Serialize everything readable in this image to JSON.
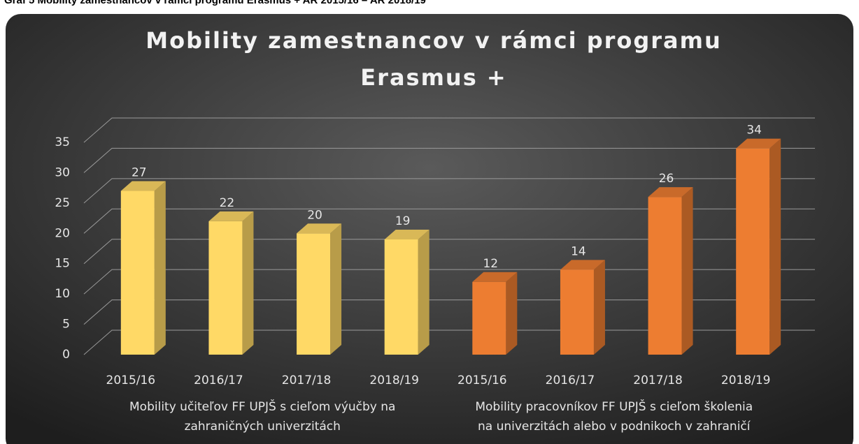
{
  "caption": "Graf 5 Mobility zamestnancov v rámci programu Erasmus + AR 2015/16 – AR 2018/19",
  "chart_data": {
    "type": "bar",
    "title": [
      "Mobility zamestnancov v rámci programu",
      "Erasmus +"
    ],
    "groups": [
      {
        "label": [
          "Mobility učiteľov FF UPJŠ s cieľom výučby na",
          "zahraničných univerzitách"
        ],
        "color": "#ffd966",
        "categories": [
          "2015/16",
          "2016/17",
          "2017/18",
          "2018/19"
        ],
        "values": [
          27,
          22,
          20,
          19
        ]
      },
      {
        "label": [
          "Mobility pracovníkov FF UPJŠ s cieľom školenia",
          "na univerzitách alebo v podnikoch v zahraničí"
        ],
        "color": "#ed7d31",
        "categories": [
          "2015/16",
          "2016/17",
          "2017/18",
          "2018/19"
        ],
        "values": [
          12,
          14,
          26,
          34
        ]
      }
    ],
    "ylim": [
      0,
      35
    ],
    "yticks": [
      0,
      5,
      10,
      15,
      20,
      25,
      30,
      35
    ],
    "grid": true
  }
}
